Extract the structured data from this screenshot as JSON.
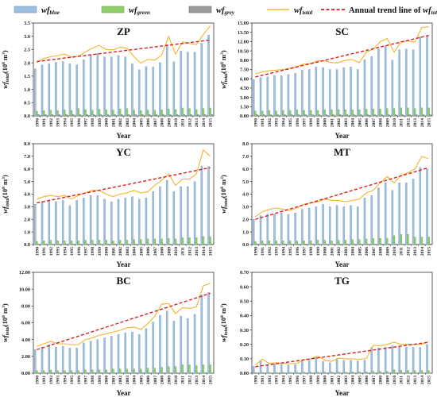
{
  "legend": {
    "blue": "wf",
    "blue_sub": "blue",
    "green": "wf",
    "green_sub": "green",
    "grey": "wf",
    "grey_sub": "grey",
    "total": "wf",
    "total_sub": "total",
    "trend": "Annual trend line of ",
    "trend_var": "wf",
    "trend_sub": "total"
  },
  "colors": {
    "blue": "#9dbfe2",
    "blue_edge": "#6d95c2",
    "green": "#8fce6a",
    "grey": "#9a9a9a",
    "total": "#f2b52b",
    "trend": "#e01b1b"
  },
  "chart_data": [
    {
      "type": "bar",
      "title": "ZP",
      "xlabel": "Year",
      "ylabel": "wf",
      "ylabel_sub": "total",
      "ylabel_unit": "(10",
      "ylabel_exp": "8",
      "ylabel_rest": " m",
      "ylabel_exp2": "3",
      "ylabel_close": ")",
      "categories": [
        "1990",
        "1991",
        "1992",
        "1993",
        "1994",
        "1995",
        "1996",
        "1997",
        "1998",
        "1999",
        "2000",
        "2001",
        "2002",
        "2003",
        "2004",
        "2005",
        "2006",
        "2007",
        "2008",
        "2009",
        "2010",
        "2011",
        "2012",
        "2013",
        "2014",
        "2015"
      ],
      "ylim": [
        0,
        3.5
      ],
      "yticks": [
        "0.0",
        "0.5",
        "1.0",
        "1.5",
        "2.0",
        "2.5",
        "3.0",
        "3.5"
      ],
      "series": [
        {
          "name": "wf blue",
          "values": [
            1.78,
            1.92,
            1.96,
            2.02,
            2.05,
            1.96,
            1.92,
            2.12,
            2.28,
            2.36,
            2.22,
            2.22,
            2.28,
            2.22,
            1.96,
            1.74,
            1.86,
            1.84,
            2.01,
            2.68,
            2.04,
            2.44,
            2.4,
            2.4,
            2.74,
            3.05
          ]
        },
        {
          "name": "wf green",
          "values": [
            0.18,
            0.2,
            0.22,
            0.2,
            0.23,
            0.21,
            0.28,
            0.24,
            0.22,
            0.25,
            0.23,
            0.22,
            0.26,
            0.28,
            0.22,
            0.2,
            0.22,
            0.22,
            0.23,
            0.26,
            0.24,
            0.3,
            0.28,
            0.24,
            0.28,
            0.3
          ]
        },
        {
          "name": "wf grey",
          "values": [
            0.05,
            0.05,
            0.05,
            0.05,
            0.05,
            0.05,
            0.05,
            0.05,
            0.05,
            0.05,
            0.05,
            0.05,
            0.05,
            0.05,
            0.05,
            0.05,
            0.05,
            0.05,
            0.05,
            0.05,
            0.05,
            0.05,
            0.05,
            0.05,
            0.05,
            0.05
          ]
        },
        {
          "name": "wf total",
          "values": [
            2.01,
            2.17,
            2.23,
            2.27,
            2.33,
            2.22,
            2.25,
            2.41,
            2.55,
            2.66,
            2.5,
            2.49,
            2.59,
            2.55,
            2.23,
            1.99,
            2.13,
            2.11,
            2.29,
            2.99,
            2.33,
            2.79,
            2.73,
            2.69,
            3.07,
            3.4
          ]
        }
      ],
      "trend": [
        2.05,
        2.86
      ]
    },
    {
      "type": "bar",
      "title": "SC",
      "xlabel": "Year",
      "ylabel": "wf",
      "ylabel_sub": "total",
      "ylabel_unit": "(10",
      "ylabel_exp": "8",
      "ylabel_rest": " m",
      "ylabel_exp2": "3",
      "ylabel_close": ")",
      "categories": [
        "1990",
        "1991",
        "1992",
        "1993",
        "1994",
        "1995",
        "1996",
        "1997",
        "1998",
        "1999",
        "2000",
        "2001",
        "2002",
        "2003",
        "2004",
        "2005",
        "2006",
        "2007",
        "2008",
        "2009",
        "2010",
        "2011",
        "2012",
        "2013",
        "2014",
        "2015"
      ],
      "ylim": [
        0,
        15
      ],
      "yticks": [
        "0.00",
        "1.50",
        "3.00",
        "4.50",
        "6.00",
        "7.50",
        "9.00",
        "10.50",
        "12.00",
        "13.50",
        "15.00"
      ],
      "series": [
        {
          "name": "wf blue",
          "values": [
            5.9,
            6.2,
            6.3,
            6.5,
            6.5,
            6.7,
            6.9,
            7.4,
            7.5,
            7.9,
            7.8,
            7.5,
            7.5,
            7.8,
            7.9,
            7.5,
            9.1,
            9.6,
            10.8,
            11.3,
            9.0,
            10.7,
            10.8,
            10.7,
            12.8,
            13.0
          ]
        },
        {
          "name": "wf green",
          "values": [
            0.8,
            0.8,
            0.9,
            0.8,
            0.9,
            0.9,
            1.0,
            0.9,
            0.9,
            0.9,
            1.0,
            1.0,
            1.0,
            1.0,
            1.0,
            1.0,
            1.1,
            1.1,
            1.1,
            1.2,
            1.2,
            1.3,
            1.3,
            1.2,
            1.3,
            1.3
          ]
        },
        {
          "name": "wf grey",
          "values": [
            0.2,
            0.2,
            0.2,
            0.2,
            0.2,
            0.2,
            0.2,
            0.2,
            0.2,
            0.2,
            0.2,
            0.2,
            0.2,
            0.2,
            0.2,
            0.2,
            0.2,
            0.2,
            0.2,
            0.2,
            0.2,
            0.2,
            0.2,
            0.2,
            0.2,
            0.2
          ]
        },
        {
          "name": "wf total",
          "values": [
            6.8,
            7.1,
            7.3,
            7.4,
            7.5,
            7.7,
            8.0,
            8.4,
            8.5,
            8.9,
            8.9,
            8.6,
            8.6,
            9.0,
            9.1,
            8.6,
            10.3,
            10.8,
            12.0,
            12.5,
            10.3,
            12.0,
            12.1,
            11.9,
            14.3,
            14.4
          ]
        }
      ],
      "trend": [
        6.3,
        13.0
      ]
    },
    {
      "type": "bar",
      "title": "YC",
      "xlabel": "Year",
      "ylabel": "wf",
      "ylabel_sub": "total",
      "ylabel_unit": "(10",
      "ylabel_exp": "8",
      "ylabel_rest": " m",
      "ylabel_exp2": "3",
      "ylabel_close": ")",
      "categories": [
        "1990",
        "1991",
        "1992",
        "1993",
        "1994",
        "1995",
        "1996",
        "1997",
        "1998",
        "1999",
        "2000",
        "2001",
        "2002",
        "2003",
        "2004",
        "2005",
        "2006",
        "2007",
        "2008",
        "2009",
        "2010",
        "2011",
        "2012",
        "2013",
        "2014",
        "2015"
      ],
      "ylim": [
        0,
        8
      ],
      "yticks": [
        "0.0",
        "1.0",
        "2.0",
        "3.0",
        "4.0",
        "5.0",
        "6.0",
        "7.0",
        "8.0"
      ],
      "series": [
        {
          "name": "wf blue",
          "values": [
            3.2,
            3.4,
            3.5,
            3.4,
            3.5,
            3.1,
            3.5,
            3.7,
            3.9,
            3.9,
            3.6,
            3.4,
            3.6,
            3.7,
            3.8,
            3.6,
            3.7,
            4.2,
            4.6,
            5.1,
            4.2,
            4.6,
            4.6,
            5.0,
            6.2,
            6.2
          ]
        },
        {
          "name": "wf green",
          "values": [
            0.25,
            0.3,
            0.35,
            0.3,
            0.3,
            0.3,
            0.3,
            0.35,
            0.35,
            0.35,
            0.35,
            0.3,
            0.35,
            0.35,
            0.4,
            0.4,
            0.45,
            0.45,
            0.45,
            0.5,
            0.45,
            0.55,
            0.55,
            0.55,
            0.65,
            0.6
          ]
        },
        {
          "name": "wf grey",
          "values": [
            0.05,
            0.05,
            0.05,
            0.05,
            0.05,
            0.05,
            0.05,
            0.05,
            0.05,
            0.05,
            0.05,
            0.05,
            0.05,
            0.05,
            0.05,
            0.05,
            0.05,
            0.05,
            0.05,
            0.05,
            0.05,
            0.05,
            0.05,
            0.05,
            0.05,
            0.05
          ]
        },
        {
          "name": "wf total",
          "values": [
            3.6,
            3.8,
            3.9,
            3.8,
            3.9,
            3.6,
            3.9,
            4.1,
            4.3,
            4.3,
            4.0,
            3.8,
            4.0,
            4.1,
            4.3,
            4.1,
            4.2,
            4.7,
            5.1,
            5.6,
            4.7,
            5.2,
            5.2,
            5.6,
            7.5,
            7.0
          ]
        }
      ],
      "trend": [
        3.3,
        6.1
      ]
    },
    {
      "type": "bar",
      "title": "MT",
      "xlabel": "Year",
      "ylabel": "wf",
      "ylabel_sub": "total",
      "ylabel_unit": "(10",
      "ylabel_exp": "8",
      "ylabel_rest": " m",
      "ylabel_exp2": "3",
      "ylabel_close": ")",
      "categories": [
        "1990",
        "1991",
        "1992",
        "1993",
        "1994",
        "1995",
        "1996",
        "1997",
        "1998",
        "1999",
        "2000",
        "2001",
        "2002",
        "2003",
        "2004",
        "2005",
        "2006",
        "2007",
        "2008",
        "2009",
        "2010",
        "2011",
        "2012",
        "2013",
        "2014",
        "2015"
      ],
      "ylim": [
        0,
        8
      ],
      "yticks": [
        "0.0",
        "1.0",
        "2.0",
        "3.0",
        "4.0",
        "5.0",
        "6.0",
        "7.0",
        "8.0"
      ],
      "series": [
        {
          "name": "wf blue",
          "values": [
            2.0,
            2.3,
            2.4,
            2.4,
            2.5,
            2.4,
            2.5,
            2.8,
            2.9,
            3.0,
            3.2,
            3.0,
            3.1,
            3.0,
            3.1,
            3.0,
            3.7,
            3.9,
            4.5,
            4.9,
            4.3,
            4.9,
            4.9,
            5.2,
            6.1,
            6.0
          ]
        },
        {
          "name": "wf green",
          "values": [
            0.25,
            0.3,
            0.3,
            0.3,
            0.3,
            0.3,
            0.3,
            0.3,
            0.3,
            0.35,
            0.35,
            0.3,
            0.35,
            0.35,
            0.4,
            0.4,
            0.45,
            0.5,
            0.5,
            0.5,
            0.7,
            0.8,
            0.8,
            0.6,
            0.6,
            0.6
          ]
        },
        {
          "name": "wf grey",
          "values": [
            0.05,
            0.05,
            0.05,
            0.05,
            0.05,
            0.05,
            0.05,
            0.05,
            0.05,
            0.05,
            0.05,
            0.05,
            0.05,
            0.05,
            0.05,
            0.05,
            0.05,
            0.05,
            0.05,
            0.05,
            0.05,
            0.05,
            0.05,
            0.05,
            0.05,
            0.05
          ]
        },
        {
          "name": "wf total",
          "values": [
            2.2,
            2.6,
            2.8,
            2.9,
            2.8,
            2.7,
            2.9,
            3.2,
            3.3,
            3.4,
            3.6,
            3.5,
            3.5,
            3.4,
            3.5,
            3.6,
            4.1,
            4.3,
            4.9,
            5.4,
            4.9,
            5.5,
            5.7,
            6.0,
            7.0,
            6.8
          ]
        }
      ],
      "trend": [
        2.0,
        6.1
      ]
    },
    {
      "type": "bar",
      "title": "BC",
      "xlabel": "Year",
      "ylabel": "wf",
      "ylabel_sub": "total",
      "ylabel_unit": "(10",
      "ylabel_exp": "8",
      "ylabel_rest": " m",
      "ylabel_exp2": "3",
      "ylabel_close": ")",
      "categories": [
        "1990",
        "1991",
        "1992",
        "1993",
        "1994",
        "1995",
        "1996",
        "1997",
        "1998",
        "1999",
        "2000",
        "2001",
        "2002",
        "2003",
        "2004",
        "2005",
        "2006",
        "2007",
        "2008",
        "2009",
        "2010",
        "2011",
        "2012",
        "2013",
        "2014",
        "2015"
      ],
      "ylim": [
        0,
        12
      ],
      "yticks": [
        "0.00",
        "2.00",
        "4.00",
        "6.00",
        "8.00",
        "10.00",
        "12.00"
      ],
      "series": [
        {
          "name": "wf blue",
          "values": [
            2.8,
            3.1,
            3.4,
            3.1,
            3.2,
            3.0,
            3.0,
            3.6,
            3.8,
            4.0,
            4.2,
            4.4,
            4.6,
            4.8,
            4.9,
            4.6,
            5.3,
            6.1,
            6.9,
            7.4,
            6.2,
            6.8,
            6.5,
            7.0,
            9.3,
            9.6
          ]
        },
        {
          "name": "wf green",
          "values": [
            0.3,
            0.3,
            0.4,
            0.3,
            0.3,
            0.3,
            0.3,
            0.4,
            0.4,
            0.4,
            0.4,
            0.5,
            0.5,
            0.5,
            0.5,
            0.5,
            0.6,
            0.6,
            0.7,
            0.8,
            0.8,
            1.0,
            1.0,
            0.9,
            1.0,
            1.0
          ]
        },
        {
          "name": "wf grey",
          "values": [
            0.05,
            0.05,
            0.05,
            0.05,
            0.05,
            0.05,
            0.05,
            0.05,
            0.05,
            0.05,
            0.05,
            0.05,
            0.05,
            0.05,
            0.05,
            0.05,
            0.05,
            0.05,
            0.05,
            0.05,
            0.05,
            0.05,
            0.05,
            0.05,
            0.05,
            0.05
          ]
        },
        {
          "name": "wf total",
          "values": [
            3.2,
            3.5,
            3.8,
            3.5,
            3.5,
            3.4,
            3.4,
            4.0,
            4.2,
            4.5,
            4.7,
            4.9,
            5.1,
            5.4,
            5.5,
            5.2,
            5.9,
            6.8,
            8.2,
            8.3,
            7.1,
            7.8,
            7.7,
            7.9,
            10.4,
            10.7
          ]
        }
      ],
      "trend": [
        2.8,
        9.5
      ]
    },
    {
      "type": "bar",
      "title": "TG",
      "xlabel": "Year",
      "ylabel": "wf",
      "ylabel_sub": "total",
      "ylabel_unit": "(10",
      "ylabel_exp": "8",
      "ylabel_rest": " m",
      "ylabel_exp2": "3",
      "ylabel_close": ")",
      "categories": [
        "1990",
        "1991",
        "1992",
        "1993",
        "1994",
        "1995",
        "1996",
        "1997",
        "1998",
        "1999",
        "2000",
        "2001",
        "2002",
        "2003",
        "2004",
        "2005",
        "2006",
        "2007",
        "2008",
        "2009",
        "2010",
        "2011",
        "2012",
        "2013",
        "2014",
        "2015"
      ],
      "ylim": [
        0,
        0.7
      ],
      "yticks": [
        "0.00",
        "0.10",
        "0.20",
        "0.30",
        "0.40",
        "0.50",
        "0.60",
        "0.70"
      ],
      "series": [
        {
          "name": "wf blue",
          "values": [
            0.048,
            0.085,
            0.06,
            0.065,
            0.06,
            0.058,
            0.06,
            0.085,
            0.09,
            0.11,
            0.08,
            0.072,
            0.095,
            0.09,
            0.09,
            0.086,
            0.09,
            0.18,
            0.175,
            0.18,
            0.19,
            0.18,
            0.18,
            0.18,
            0.18,
            0.2
          ]
        },
        {
          "name": "wf green",
          "values": [
            0.005,
            0.006,
            0.006,
            0.006,
            0.006,
            0.006,
            0.006,
            0.007,
            0.007,
            0.008,
            0.008,
            0.008,
            0.008,
            0.008,
            0.009,
            0.009,
            0.01,
            0.012,
            0.012,
            0.012,
            0.025,
            0.02,
            0.02,
            0.018,
            0.018,
            0.018
          ]
        },
        {
          "name": "wf grey",
          "values": [
            0.002,
            0.002,
            0.002,
            0.002,
            0.002,
            0.002,
            0.002,
            0.002,
            0.002,
            0.002,
            0.002,
            0.002,
            0.002,
            0.002,
            0.002,
            0.002,
            0.002,
            0.002,
            0.002,
            0.002,
            0.002,
            0.002,
            0.002,
            0.002,
            0.002,
            0.002
          ]
        },
        {
          "name": "wf total",
          "values": [
            0.056,
            0.098,
            0.068,
            0.073,
            0.068,
            0.066,
            0.068,
            0.094,
            0.1,
            0.12,
            0.09,
            0.082,
            0.105,
            0.1,
            0.1,
            0.096,
            0.102,
            0.194,
            0.19,
            0.2,
            0.215,
            0.2,
            0.2,
            0.2,
            0.2,
            0.22
          ]
        }
      ],
      "trend": [
        0.045,
        0.215
      ]
    }
  ]
}
